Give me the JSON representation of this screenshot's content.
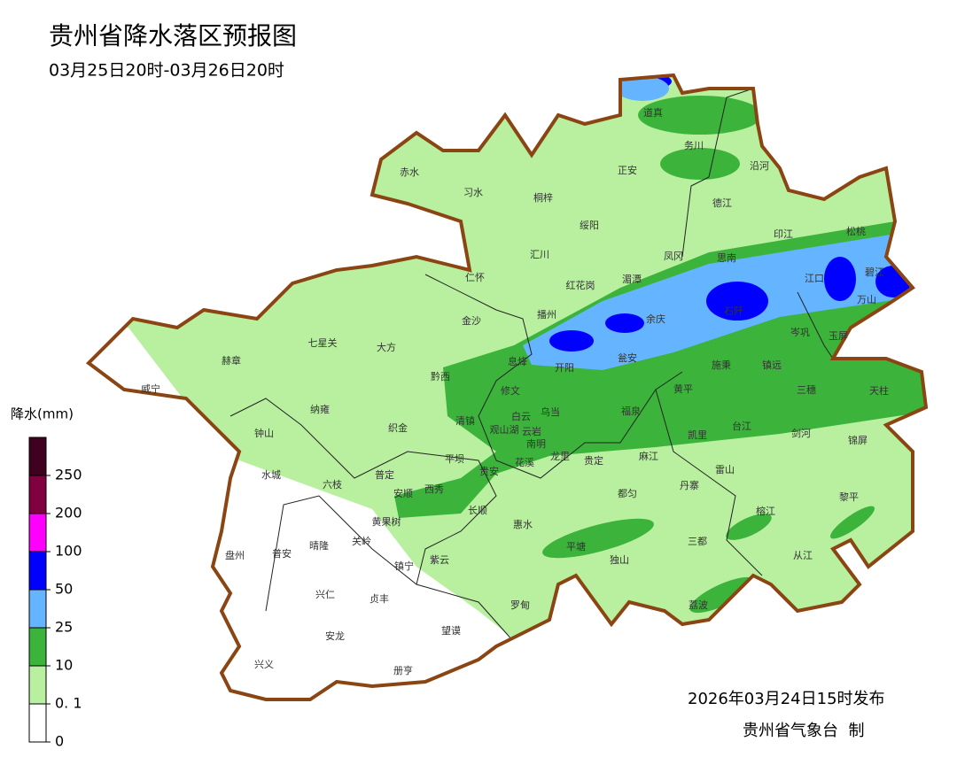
{
  "header": {
    "title": "贵州省降水落区预报图",
    "subtitle": "03月25日20时-03月26日20时"
  },
  "legend": {
    "title": "降水(mm)",
    "ticks": [
      0,
      {
        "value": 0.1,
        "label": "0. 1"
      },
      10,
      25,
      50,
      100,
      200,
      250
    ],
    "colors": [
      "#ffffff",
      "#b8f0a0",
      "#3cb43c",
      "#64b4ff",
      "#0000ff",
      "#ff00ff",
      "#800040",
      "#400020"
    ]
  },
  "places": [
    "道真",
    "务川",
    "沿河",
    "赤水",
    "习水",
    "正安",
    "桐梓",
    "德江",
    "绥阳",
    "印江",
    "松桃",
    "汇川",
    "凤冈",
    "思南",
    "仁怀",
    "红花岗",
    "湄潭",
    "江口",
    "碧江",
    "万山",
    "播州",
    "余庆",
    "石阡",
    "金沙",
    "七星关",
    "大方",
    "岑巩",
    "玉屏",
    "赫章",
    "息烽",
    "开阳",
    "瓮安",
    "施秉",
    "镇远",
    "威宁",
    "黔西",
    "修文",
    "乌当",
    "黄平",
    "三穗",
    "天柱",
    "纳雍",
    "白云",
    "清镇",
    "观山湖",
    "云岩",
    "南明",
    "福泉",
    "凯里",
    "台江",
    "剑河",
    "锦屏",
    "钟山",
    "织金",
    "平坝",
    "花溪",
    "龙里",
    "贵定",
    "麻江",
    "雷山",
    "丹寨",
    "水城",
    "六枝",
    "普定",
    "安顺",
    "西秀",
    "贵安",
    "都匀",
    "黎平",
    "黄果树",
    "长顺",
    "惠水",
    "榕江",
    "盘州",
    "普安",
    "晴隆",
    "关岭",
    "镇宁",
    "紫云",
    "平塘",
    "三都",
    "独山",
    "从江",
    "兴仁",
    "贞丰",
    "罗甸",
    "荔波",
    "安龙",
    "望谟",
    "兴义",
    "册亨"
  ],
  "footer": {
    "issued": "2026年03月24日15时发布",
    "issuer": "贵州省气象台  制"
  }
}
